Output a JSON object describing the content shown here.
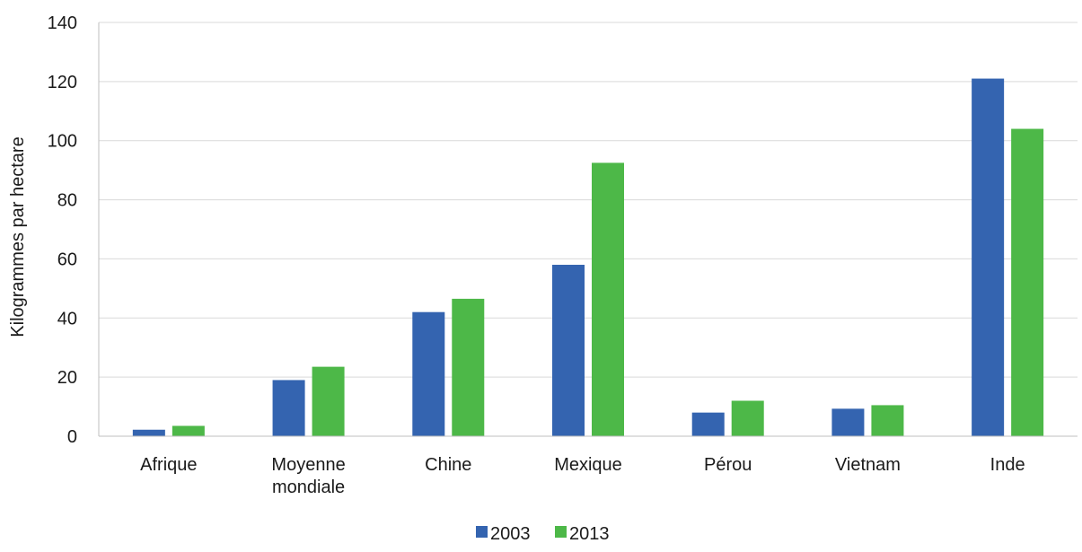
{
  "chart_data": {
    "type": "bar",
    "title": "",
    "xlabel": "",
    "ylabel": "Kilogrammes par hectare",
    "ylim": [
      0,
      140
    ],
    "yticks": [
      "0",
      "20",
      "40",
      "60",
      "80",
      "100",
      "120",
      "140"
    ],
    "grid": true,
    "legend_position": "bottom",
    "categories": [
      [
        "Afrique"
      ],
      [
        "Moyenne",
        "mondiale"
      ],
      [
        "Chine"
      ],
      [
        "Mexique"
      ],
      [
        "Pérou"
      ],
      [
        "Vietnam"
      ],
      [
        "Inde"
      ]
    ],
    "series": [
      {
        "name": "2003",
        "color": "#3464b0",
        "values": [
          2.2,
          19,
          42,
          58,
          8,
          9.3,
          121
        ]
      },
      {
        "name": "2013",
        "color": "#4db848",
        "values": [
          3.5,
          23.5,
          46.5,
          92.5,
          12,
          10.5,
          104
        ]
      }
    ]
  }
}
